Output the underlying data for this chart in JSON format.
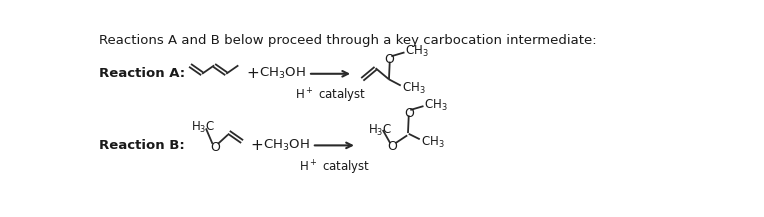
{
  "title_text": "Reactions A and B below proceed through a key carbocation intermediate:",
  "reaction_a_label": "Reaction A:",
  "reaction_b_label": "Reaction B:",
  "bg_color": "#ffffff",
  "text_color": "#1a1a1a",
  "line_color": "#2a2a2a",
  "font_size_title": 9.5,
  "font_size_label": 9.5,
  "font_size_chem": 9.5,
  "font_size_atom": 9.0,
  "font_size_small": 8.5
}
